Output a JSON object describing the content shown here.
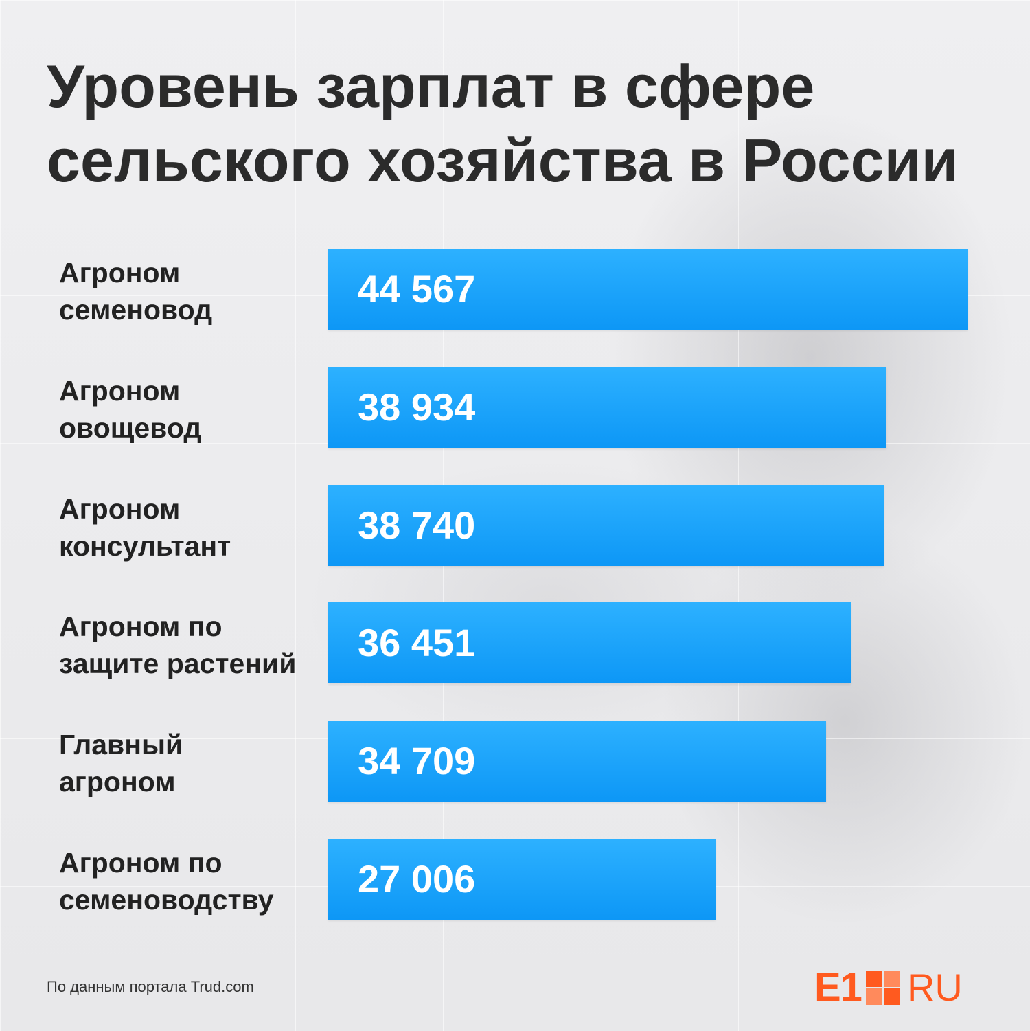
{
  "title_lines": [
    "Уровень зарплат в сфере",
    "сельского хозяйства в России"
  ],
  "source_text": "По данным портала Trud.com",
  "logo": {
    "left": "E1",
    "right": "RU",
    "color": "#ff5a1f"
  },
  "colors": {
    "bar_top": "#2db1ff",
    "bar_bottom": "#0d97f6",
    "text": "#2b2b2b"
  },
  "chart_data": {
    "type": "bar",
    "orientation": "horizontal",
    "title": "Уровень зарплат в сфере сельского хозяйства в России",
    "categories": [
      [
        "Агроном",
        "семеновод"
      ],
      [
        "Агроном",
        "овощевод"
      ],
      [
        "Агроном",
        "консультант"
      ],
      [
        "Агроном по",
        "защите растений"
      ],
      [
        "Главный",
        "агроном"
      ],
      [
        "Агроном по",
        "семеноводству"
      ]
    ],
    "values": [
      44567,
      38934,
      38740,
      36451,
      34709,
      27006
    ],
    "value_labels": [
      "44 567",
      "38 934",
      "38 740",
      "36 451",
      "34 709",
      "27 006"
    ],
    "xlim": [
      0,
      44567
    ],
    "grid": false,
    "legend": "none"
  }
}
